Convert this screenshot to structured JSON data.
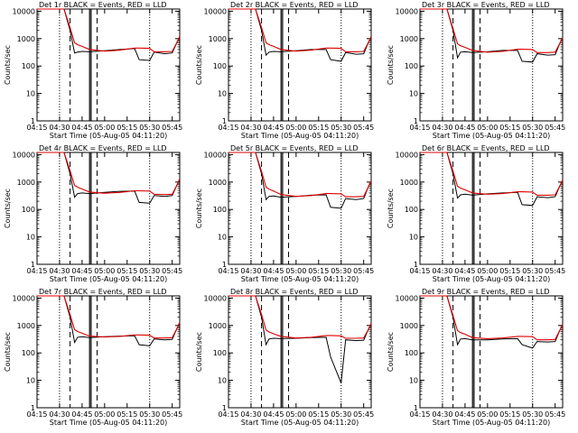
{
  "figure": {
    "panel_titles": [
      "Det 1r  BLACK = Events, RED = LLD",
      "Det 2r  BLACK = Events, RED = LLD",
      "Det 3r  BLACK = Events, RED = LLD",
      "Det 4r  BLACK = Events, RED = LLD",
      "Det 5r  BLACK = Events, RED = LLD",
      "Det 6r  BLACK = Events, RED = LLD",
      "Det 7r  BLACK = Events, RED = LLD",
      "Det 8r  BLACK = Events, RED = LLD",
      "Det 9r  BLACK = Events, RED = LLD"
    ],
    "xlabel": "Start Time (05-Aug-05 04:11:20)",
    "ylabel": "Counts/sec",
    "colors": {
      "events": "#000000",
      "lld": "#dd0000",
      "axes": "#000000"
    }
  },
  "chart_data": {
    "type": "line",
    "scale_y": "log",
    "ylim": [
      1,
      12000
    ],
    "xlim": [
      "04:15",
      "05:50"
    ],
    "x_ticks": [
      "04:15",
      "04:30",
      "04:45",
      "05:00",
      "05:15",
      "05:30",
      "05:45"
    ],
    "y_ticks": [
      "1",
      "10",
      "100",
      "1000",
      "10000"
    ],
    "vertical_markers": {
      "dotted": [
        "04:30",
        "05:30"
      ],
      "dashed": [
        "04:37",
        "04:55"
      ],
      "solid": [
        "04:50",
        "04:51"
      ]
    },
    "x": [
      "04:15",
      "04:33",
      "04:37",
      "04:40",
      "04:42",
      "04:45",
      "04:50",
      "05:00",
      "05:10",
      "05:20",
      "05:23",
      "05:30",
      "05:33",
      "05:40",
      "05:45",
      "05:48",
      "05:50"
    ],
    "panels": [
      {
        "events": [
          12000,
          12000,
          2000,
          300,
          320,
          340,
          330,
          360,
          400,
          430,
          170,
          160,
          320,
          280,
          300,
          700,
          1200
        ],
        "lld": [
          12000,
          12000,
          2500,
          700,
          600,
          520,
          400,
          350,
          380,
          450,
          450,
          440,
          330,
          330,
          340,
          700,
          1200
        ]
      },
      {
        "events": [
          12000,
          12000,
          2000,
          250,
          320,
          340,
          330,
          360,
          400,
          400,
          170,
          150,
          310,
          270,
          280,
          700,
          1200
        ],
        "lld": [
          12000,
          12000,
          2500,
          700,
          600,
          520,
          400,
          350,
          380,
          450,
          450,
          440,
          330,
          330,
          340,
          700,
          1200
        ]
      },
      {
        "events": [
          12000,
          12000,
          2000,
          200,
          320,
          330,
          310,
          330,
          370,
          370,
          150,
          140,
          280,
          250,
          260,
          650,
          1100
        ],
        "lld": [
          12000,
          12000,
          2300,
          650,
          550,
          480,
          370,
          320,
          340,
          410,
          410,
          400,
          310,
          310,
          320,
          650,
          1100
        ]
      },
      {
        "events": [
          12000,
          12000,
          2000,
          280,
          380,
          400,
          380,
          420,
          460,
          470,
          180,
          170,
          320,
          300,
          320,
          750,
          1300
        ],
        "lld": [
          12000,
          12000,
          2600,
          750,
          650,
          560,
          430,
          390,
          420,
          480,
          480,
          470,
          360,
          350,
          360,
          750,
          1300
        ]
      },
      {
        "events": [
          12000,
          12000,
          2000,
          230,
          300,
          310,
          280,
          300,
          330,
          340,
          120,
          110,
          250,
          230,
          250,
          650,
          1100
        ],
        "lld": [
          12000,
          12000,
          2400,
          650,
          550,
          470,
          350,
          300,
          320,
          380,
          380,
          370,
          290,
          290,
          300,
          650,
          1100
        ]
      },
      {
        "events": [
          12000,
          12000,
          2000,
          260,
          340,
          360,
          330,
          370,
          400,
          420,
          150,
          140,
          290,
          270,
          290,
          700,
          1200
        ],
        "lld": [
          12000,
          12000,
          2500,
          700,
          600,
          520,
          400,
          360,
          380,
          440,
          440,
          430,
          330,
          330,
          340,
          700,
          1200
        ]
      },
      {
        "events": [
          12000,
          12000,
          2000,
          240,
          370,
          390,
          360,
          390,
          410,
          420,
          200,
          180,
          320,
          300,
          310,
          750,
          1300
        ],
        "lld": [
          12000,
          12000,
          2500,
          700,
          600,
          520,
          410,
          380,
          400,
          450,
          450,
          440,
          350,
          350,
          360,
          750,
          1300
        ]
      },
      {
        "events": [
          12000,
          12000,
          2000,
          200,
          320,
          340,
          330,
          340,
          360,
          370,
          70,
          8,
          300,
          280,
          290,
          700,
          1200
        ],
        "lld": [
          12000,
          12000,
          2500,
          680,
          580,
          500,
          400,
          350,
          370,
          430,
          430,
          420,
          340,
          340,
          350,
          700,
          1200
        ]
      },
      {
        "events": [
          12000,
          12000,
          2000,
          200,
          320,
          330,
          300,
          300,
          320,
          330,
          200,
          150,
          260,
          250,
          260,
          650,
          1100
        ],
        "lld": [
          12000,
          12000,
          2300,
          650,
          550,
          480,
          360,
          330,
          350,
          400,
          400,
          390,
          300,
          300,
          310,
          650,
          1100
        ]
      }
    ]
  }
}
